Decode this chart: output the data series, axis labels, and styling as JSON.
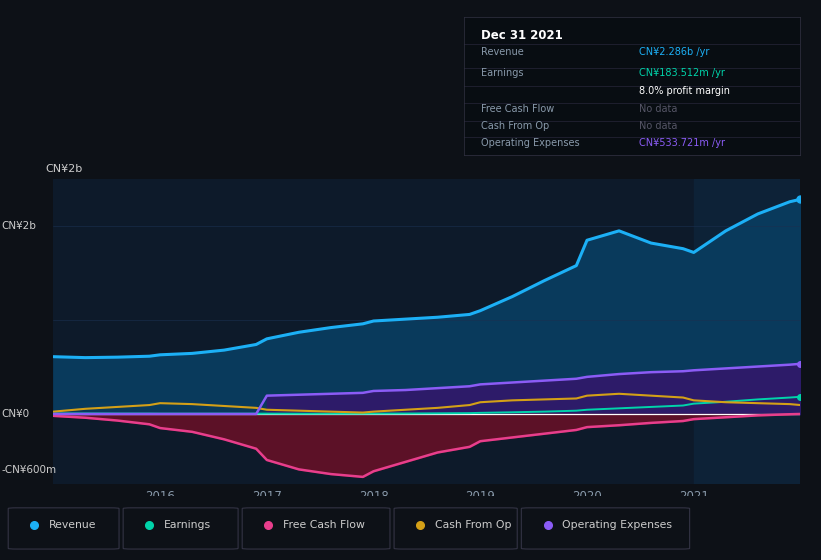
{
  "bg_color": "#0d1117",
  "plot_bg_color": "#0d1a2a",
  "highlight_bg": "#0d2237",
  "grid_color": "#1a3050",
  "zero_line_color": "#ffffff",
  "title_date": "Dec 31 2021",
  "tooltip_revenue_label": "Revenue",
  "tooltip_revenue_val": "CN¥2.286b /yr",
  "tooltip_earnings_label": "Earnings",
  "tooltip_earnings_val": "CN¥183.512m /yr",
  "tooltip_margin": "8.0% profit margin",
  "tooltip_fcf_label": "Free Cash Flow",
  "tooltip_fcf_val": "No data",
  "tooltip_cfo_label": "Cash From Op",
  "tooltip_cfo_val": "No data",
  "tooltip_opex_label": "Operating Expenses",
  "tooltip_opex_val": "CN¥533.721m /yr",
  "years": [
    2015.0,
    2015.3,
    2015.6,
    2015.9,
    2016.0,
    2016.3,
    2016.6,
    2016.9,
    2017.0,
    2017.3,
    2017.6,
    2017.9,
    2018.0,
    2018.3,
    2018.6,
    2018.9,
    2019.0,
    2019.3,
    2019.6,
    2019.9,
    2020.0,
    2020.3,
    2020.6,
    2020.9,
    2021.0,
    2021.3,
    2021.6,
    2021.9,
    2022.0
  ],
  "revenue": [
    610,
    600,
    605,
    615,
    630,
    645,
    680,
    740,
    800,
    870,
    920,
    960,
    990,
    1010,
    1030,
    1060,
    1100,
    1250,
    1420,
    1580,
    1850,
    1950,
    1820,
    1760,
    1720,
    1950,
    2130,
    2260,
    2286
  ],
  "earnings": [
    5,
    5,
    4,
    4,
    3,
    3,
    3,
    3,
    4,
    3,
    3,
    3,
    4,
    5,
    7,
    9,
    12,
    18,
    25,
    35,
    45,
    60,
    75,
    90,
    110,
    130,
    155,
    175,
    183
  ],
  "free_cash_flow": [
    -20,
    -40,
    -70,
    -110,
    -150,
    -190,
    -270,
    -370,
    -490,
    -590,
    -640,
    -670,
    -610,
    -510,
    -410,
    -350,
    -290,
    -250,
    -210,
    -170,
    -140,
    -120,
    -95,
    -75,
    -55,
    -35,
    -15,
    -3,
    0
  ],
  "cash_from_op": [
    25,
    55,
    75,
    95,
    115,
    105,
    85,
    65,
    45,
    35,
    25,
    15,
    25,
    45,
    65,
    95,
    125,
    145,
    155,
    165,
    195,
    215,
    195,
    175,
    145,
    125,
    115,
    105,
    95
  ],
  "operating_expenses": [
    0,
    0,
    0,
    0,
    0,
    0,
    0,
    0,
    195,
    205,
    215,
    225,
    245,
    255,
    275,
    295,
    315,
    335,
    355,
    375,
    395,
    425,
    445,
    455,
    465,
    485,
    505,
    525,
    534
  ],
  "revenue_color": "#1cb0f6",
  "revenue_fill": "#093a5c",
  "earnings_color": "#00d4aa",
  "fcf_color": "#e83e8c",
  "fcf_fill": "#5c1127",
  "cfo_color": "#d4a017",
  "opex_color": "#8b5cf6",
  "opex_fill": "#2d1b69",
  "highlight_start": 2021.0,
  "xmin": 2015.0,
  "xmax": 2022.0,
  "ymin": -750,
  "ymax": 2500,
  "ytick_vals": [
    2000,
    0,
    -600
  ],
  "ytick_labels": [
    "CN¥2b",
    "CN¥0",
    "-CN¥600m"
  ],
  "xtick_vals": [
    2016,
    2017,
    2018,
    2019,
    2020,
    2021
  ],
  "legend": [
    {
      "label": "Revenue",
      "color": "#1cb0f6"
    },
    {
      "label": "Earnings",
      "color": "#00d4aa"
    },
    {
      "label": "Free Cash Flow",
      "color": "#e83e8c"
    },
    {
      "label": "Cash From Op",
      "color": "#d4a017"
    },
    {
      "label": "Operating Expenses",
      "color": "#8b5cf6"
    }
  ]
}
